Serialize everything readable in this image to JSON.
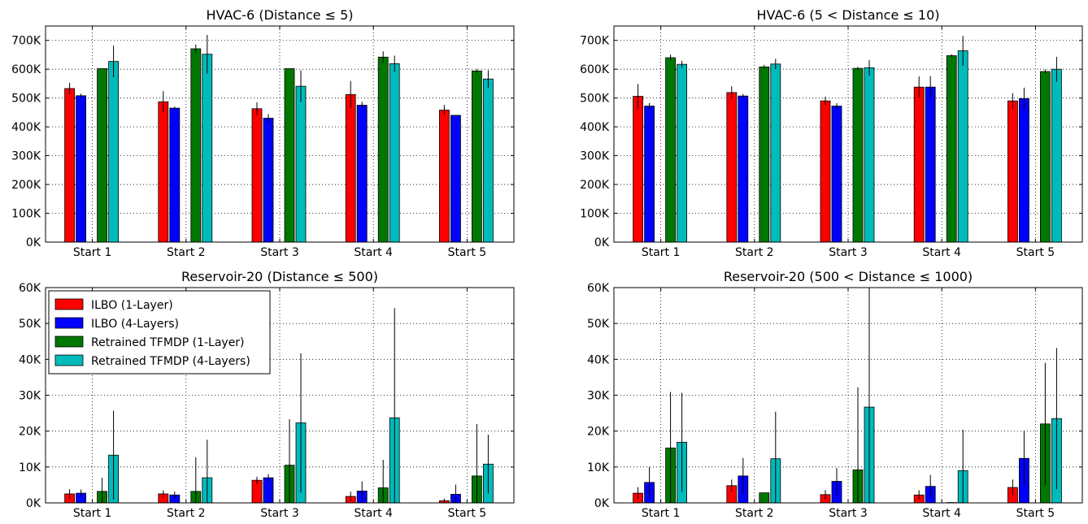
{
  "series_colors": [
    "#ff0000",
    "#0000ff",
    "#007700",
    "#00bbbb"
  ],
  "chart_data": [
    {
      "type": "bar",
      "title": "HVAC-6 (Distance ≤ 5)",
      "categories": [
        "Start 1",
        "Start 2",
        "Start 3",
        "Start 4",
        "Start 5"
      ],
      "ylim": [
        0,
        750000
      ],
      "yticks": [
        0,
        100000,
        200000,
        300000,
        400000,
        500000,
        600000,
        700000
      ],
      "ytick_labels": [
        "0K",
        "100K",
        "200K",
        "300K",
        "400K",
        "500K",
        "600K",
        "700K"
      ],
      "grid": true,
      "series": [
        {
          "name": "ILBO (1-Layer)",
          "values": [
            533000,
            487000,
            463000,
            512000,
            458000
          ],
          "errors": [
            20000,
            37000,
            22000,
            47000,
            18000
          ]
        },
        {
          "name": "ILBO (4-Layers)",
          "values": [
            508000,
            465000,
            430000,
            475000,
            440000
          ],
          "errors": [
            7000,
            5000,
            14000,
            12000,
            0
          ]
        },
        {
          "name": "Retrained TFMDP (1-Layer)",
          "values": [
            602000,
            671000,
            602000,
            642000,
            594000
          ],
          "errors": [
            0,
            15000,
            0,
            20000,
            7000
          ]
        },
        {
          "name": "Retrained TFMDP (4-Layers)",
          "values": [
            627000,
            652000,
            541000,
            619000,
            566000
          ],
          "errors": [
            55000,
            67000,
            55000,
            28000,
            30000
          ]
        }
      ]
    },
    {
      "type": "bar",
      "title": "HVAC-6 (5 < Distance ≤ 10)",
      "categories": [
        "Start 1",
        "Start 2",
        "Start 3",
        "Start 4",
        "Start 5"
      ],
      "ylim": [
        0,
        750000
      ],
      "yticks": [
        0,
        100000,
        200000,
        300000,
        400000,
        500000,
        600000,
        700000
      ],
      "ytick_labels": [
        "0K",
        "100K",
        "200K",
        "300K",
        "400K",
        "500K",
        "600K",
        "700K"
      ],
      "grid": true,
      "series": [
        {
          "name": "ILBO (1-Layer)",
          "values": [
            506000,
            519000,
            490000,
            538000,
            490000
          ],
          "errors": [
            43000,
            22000,
            15000,
            37000,
            27000
          ]
        },
        {
          "name": "ILBO (4-Layers)",
          "values": [
            472000,
            507000,
            472000,
            538000,
            498000
          ],
          "errors": [
            11000,
            7000,
            10000,
            38000,
            38000
          ]
        },
        {
          "name": "Retrained TFMDP (1-Layer)",
          "values": [
            640000,
            608000,
            603000,
            647000,
            592000
          ],
          "errors": [
            11000,
            7000,
            5000,
            5000,
            7000
          ]
        },
        {
          "name": "Retrained TFMDP (4-Layers)",
          "values": [
            617000,
            618000,
            605000,
            664000,
            600000
          ],
          "errors": [
            12000,
            18000,
            27000,
            52000,
            43000
          ]
        }
      ]
    },
    {
      "type": "bar",
      "title": "Reservoir-20 (Distance ≤ 500)",
      "categories": [
        "Start 1",
        "Start 2",
        "Start 3",
        "Start 4",
        "Start 5"
      ],
      "ylim": [
        0,
        60000
      ],
      "yticks": [
        0,
        10000,
        20000,
        30000,
        40000,
        50000,
        60000
      ],
      "ytick_labels": [
        "0K",
        "10K",
        "20K",
        "30K",
        "40K",
        "50K",
        "60K"
      ],
      "grid": true,
      "legend": "top-left",
      "series": [
        {
          "name": "ILBO (1-Layer)",
          "values": [
            2500,
            2500,
            6300,
            1800,
            600
          ],
          "errors": [
            1300,
            1000,
            1000,
            1300,
            600
          ]
        },
        {
          "name": "ILBO (4-Layers)",
          "values": [
            2700,
            2200,
            7000,
            3300,
            2400
          ],
          "errors": [
            1000,
            1000,
            1000,
            2700,
            2700
          ]
        },
        {
          "name": "Retrained TFMDP (1-Layer)",
          "values": [
            3200,
            3200,
            10500,
            4200,
            7500
          ],
          "errors": [
            3800,
            9500,
            12800,
            7800,
            14500
          ]
        },
        {
          "name": "Retrained TFMDP (4-Layers)",
          "values": [
            13300,
            7000,
            22300,
            23700,
            10800
          ],
          "errors": [
            12400,
            10600,
            19400,
            30600,
            8200
          ]
        }
      ]
    },
    {
      "type": "bar",
      "title": "Reservoir-20 (500 < Distance ≤ 1000)",
      "categories": [
        "Start 1",
        "Start 2",
        "Start 3",
        "Start 4",
        "Start 5"
      ],
      "ylim": [
        0,
        60000
      ],
      "yticks": [
        0,
        10000,
        20000,
        30000,
        40000,
        50000,
        60000
      ],
      "ytick_labels": [
        "0K",
        "10K",
        "20K",
        "30K",
        "40K",
        "50K",
        "60K"
      ],
      "grid": true,
      "series": [
        {
          "name": "ILBO (1-Layer)",
          "values": [
            2700,
            4800,
            2300,
            2200,
            4300
          ],
          "errors": [
            1700,
            1700,
            1300,
            1300,
            2200
          ]
        },
        {
          "name": "ILBO (4-Layers)",
          "values": [
            5700,
            7500,
            6000,
            4600,
            12400
          ],
          "errors": [
            4300,
            5000,
            3700,
            3200,
            7700
          ]
        },
        {
          "name": "Retrained TFMDP (1-Layer)",
          "values": [
            15300,
            2800,
            9200,
            100,
            22000
          ],
          "errors": [
            15600,
            0,
            23000,
            0,
            17000
          ]
        },
        {
          "name": "Retrained TFMDP (4-Layers)",
          "values": [
            16900,
            12300,
            26700,
            9000,
            23500
          ],
          "errors": [
            13800,
            13100,
            34000,
            11400,
            19700
          ]
        }
      ]
    }
  ]
}
